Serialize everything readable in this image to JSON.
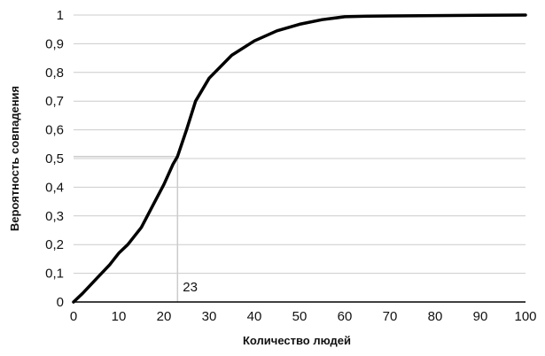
{
  "chart_data": {
    "type": "line",
    "title": "",
    "xlabel": "Количество людей",
    "ylabel": "Вероятность совпадения",
    "xlim": [
      0,
      100
    ],
    "ylim": [
      0,
      1
    ],
    "x_ticks": [
      "0",
      "10",
      "20",
      "30",
      "40",
      "50",
      "60",
      "70",
      "80",
      "90",
      "100"
    ],
    "y_ticks": [
      "0",
      "0,1",
      "0,2",
      "0,3",
      "0,4",
      "0,5",
      "0,6",
      "0,7",
      "0,8",
      "0,9",
      "1"
    ],
    "grid": "horizontal",
    "legend": "none",
    "line_color": "#000000",
    "grid_color": "#cccccc",
    "annotation": {
      "label": "23",
      "x": 23,
      "y": 0.507
    },
    "series": [
      {
        "x": [
          0,
          2,
          5,
          8,
          10,
          12,
          15,
          18,
          20,
          22,
          23,
          25,
          27,
          30,
          35,
          40,
          45,
          50,
          55,
          60,
          65,
          70,
          80,
          90,
          100
        ],
        "y": [
          0,
          0.03,
          0.08,
          0.13,
          0.17,
          0.2,
          0.26,
          0.35,
          0.41,
          0.48,
          0.507,
          0.6,
          0.7,
          0.78,
          0.86,
          0.91,
          0.945,
          0.968,
          0.984,
          0.994,
          0.996,
          0.997,
          0.998,
          0.999,
          1.0
        ]
      }
    ]
  }
}
